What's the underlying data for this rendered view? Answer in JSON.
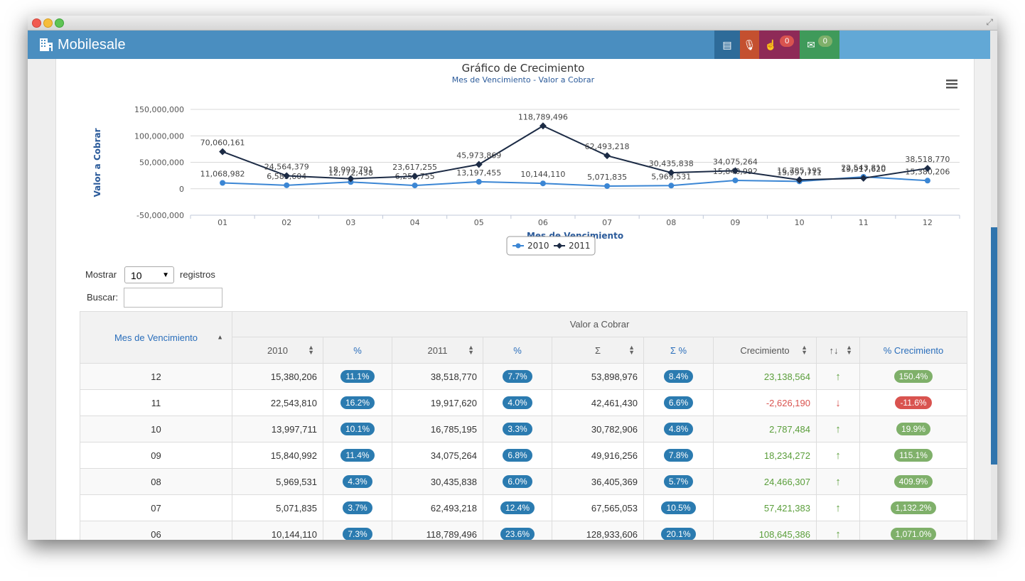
{
  "app": {
    "brand": "Mobilesale"
  },
  "navbar": {
    "buttons": [
      {
        "icon": "dashboard-icon",
        "color": "#2e6b99"
      },
      {
        "icon": "microphone-icon",
        "color": "#c4502f"
      },
      {
        "icon": "hand-icon",
        "color": "#8e2a57",
        "badge": "0",
        "badge_color": "#d9534f"
      },
      {
        "icon": "envelope-icon",
        "color": "#3f9a5a",
        "badge": "0",
        "badge_color": "#7fb06a"
      }
    ]
  },
  "chart_data": {
    "type": "line",
    "title": "Gráfico de Crecimiento",
    "subtitle": "Mes de Vencimiento - Valor a Cobrar",
    "xlabel": "Mes de Vencimiento",
    "ylabel": "Valor a Cobrar",
    "categories": [
      "01",
      "02",
      "03",
      "04",
      "05",
      "06",
      "07",
      "08",
      "09",
      "10",
      "11",
      "12"
    ],
    "ylim": [
      -50000000,
      150000000
    ],
    "yticks": [
      "150,000,000",
      "100,000,000",
      "50,000,000",
      "0",
      "-50,000,000"
    ],
    "ytick_values": [
      150000000,
      100000000,
      50000000,
      0,
      -50000000
    ],
    "legend_position": "bottom-center",
    "grid": true,
    "series": [
      {
        "name": "2010",
        "color": "#3b86d4",
        "values": [
          11068982,
          6583604,
          12772438,
          6253755,
          13197455,
          10144110,
          5071835,
          5969531,
          15840992,
          13997711,
          22543810,
          15380206
        ],
        "labels": [
          "11,068,982",
          "6,583,604",
          "12,772,438",
          "6,253,755",
          "13,197,455",
          "10,144,110",
          "5,071,835",
          "5,969,531",
          "15,840,992",
          "13,997,711",
          "22,543,810",
          "15,380,206"
        ]
      },
      {
        "name": "2011",
        "color": "#1c2b45",
        "values": [
          70060161,
          24564379,
          18993791,
          23617255,
          45973869,
          118789496,
          62493218,
          30435838,
          34075264,
          16785195,
          19917620,
          38518770
        ],
        "labels": [
          "70,060,161",
          "24,564,379",
          "18,993,791",
          "23,617,255",
          "45,973,869",
          "118,789,496",
          "62,493,218",
          "30,435,838",
          "34,075,264",
          "16,785,195",
          "19,917,620",
          "38,518,770"
        ]
      }
    ]
  },
  "controls": {
    "show_label": "Mostrar",
    "show_value": "10",
    "records_label": "registros",
    "search_label": "Buscar:"
  },
  "table": {
    "group_header": "Valor a Cobrar",
    "headers": {
      "month": "Mes de Vencimiento",
      "y2010": "2010",
      "pct1": "%",
      "y2011": "2011",
      "pct2": "%",
      "sum": "Σ",
      "sumpct": "Σ %",
      "growth": "Crecimiento",
      "trend": "↑↓",
      "growthpct": "% Crecimiento"
    },
    "rows": [
      {
        "month": "12",
        "v2010": "15,380,206",
        "p2010": "11.1%",
        "v2011": "38,518,770",
        "p2011": "7.7%",
        "sum": "53,898,976",
        "sumpct": "8.4%",
        "growth": "23,138,564",
        "dir": "up",
        "growthpct": "150.4%"
      },
      {
        "month": "11",
        "v2010": "22,543,810",
        "p2010": "16.2%",
        "v2011": "19,917,620",
        "p2011": "4.0%",
        "sum": "42,461,430",
        "sumpct": "6.6%",
        "growth": "-2,626,190",
        "dir": "down",
        "growthpct": "-11.6%"
      },
      {
        "month": "10",
        "v2010": "13,997,711",
        "p2010": "10.1%",
        "v2011": "16,785,195",
        "p2011": "3.3%",
        "sum": "30,782,906",
        "sumpct": "4.8%",
        "growth": "2,787,484",
        "dir": "up",
        "growthpct": "19.9%"
      },
      {
        "month": "09",
        "v2010": "15,840,992",
        "p2010": "11.4%",
        "v2011": "34,075,264",
        "p2011": "6.8%",
        "sum": "49,916,256",
        "sumpct": "7.8%",
        "growth": "18,234,272",
        "dir": "up",
        "growthpct": "115.1%"
      },
      {
        "month": "08",
        "v2010": "5,969,531",
        "p2010": "4.3%",
        "v2011": "30,435,838",
        "p2011": "6.0%",
        "sum": "36,405,369",
        "sumpct": "5.7%",
        "growth": "24,466,307",
        "dir": "up",
        "growthpct": "409.9%"
      },
      {
        "month": "07",
        "v2010": "5,071,835",
        "p2010": "3.7%",
        "v2011": "62,493,218",
        "p2011": "12.4%",
        "sum": "67,565,053",
        "sumpct": "10.5%",
        "growth": "57,421,383",
        "dir": "up",
        "growthpct": "1,132.2%"
      },
      {
        "month": "06",
        "v2010": "10,144,110",
        "p2010": "7.3%",
        "v2011": "118,789,496",
        "p2011": "23.6%",
        "sum": "128,933,606",
        "sumpct": "20.1%",
        "growth": "108,645,386",
        "dir": "up",
        "growthpct": "1,071.0%"
      }
    ]
  }
}
